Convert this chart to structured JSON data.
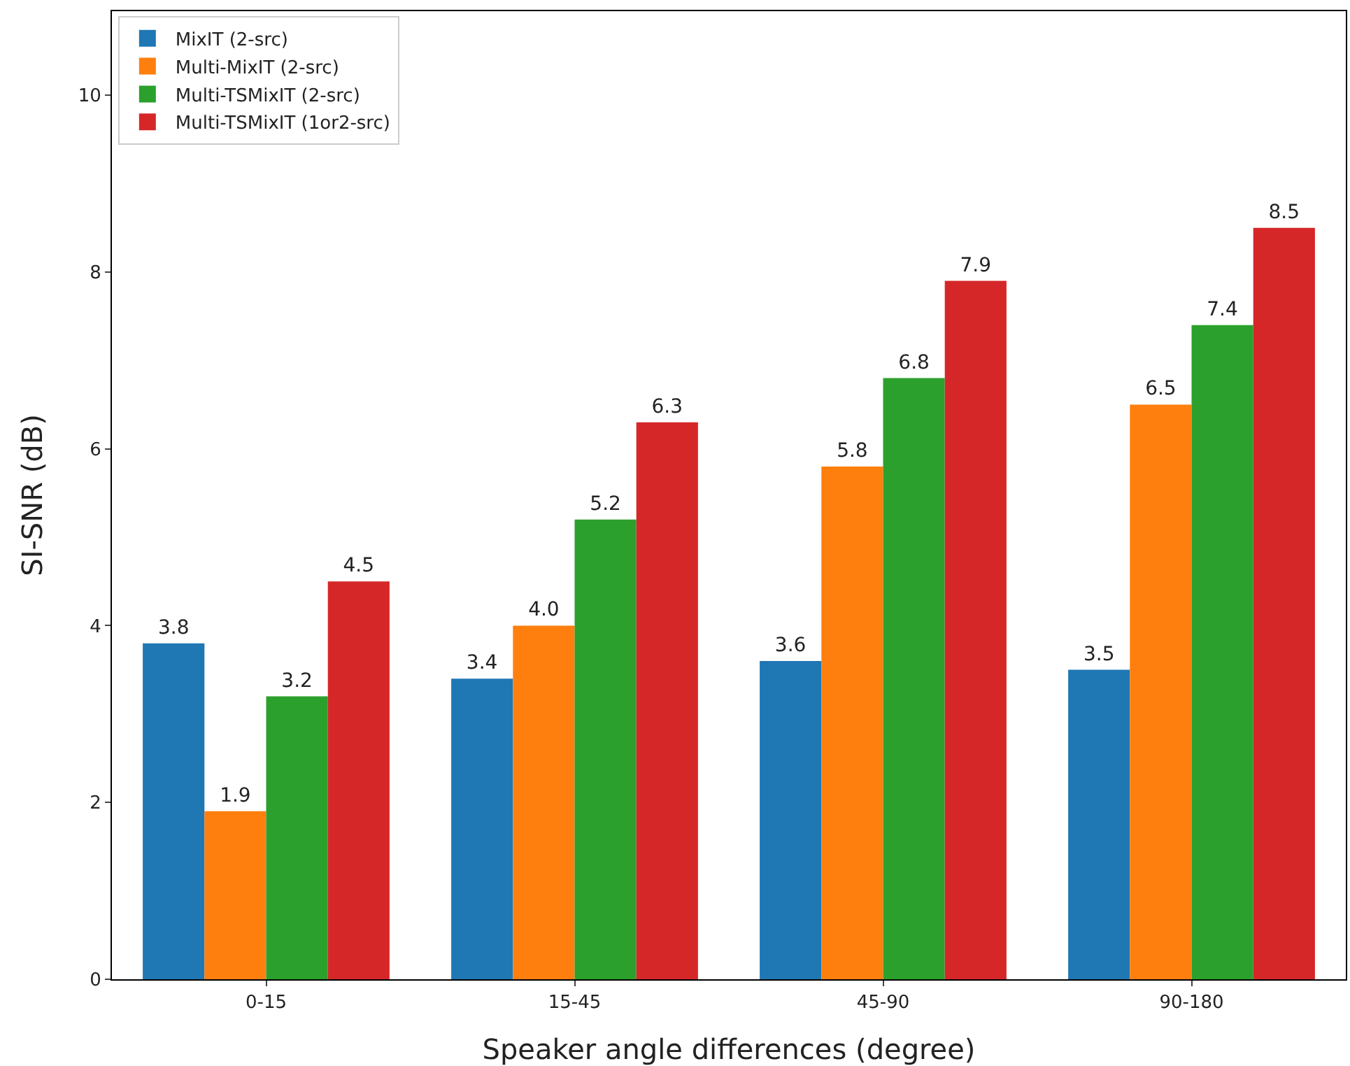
{
  "chart_data": {
    "type": "bar",
    "xlabel": "Speaker angle differences (degree)",
    "ylabel": "SI-SNR (dB)",
    "categories": [
      "0-15",
      "15-45",
      "45-90",
      "90-180"
    ],
    "series": [
      {
        "name": "MixIT (2-src)",
        "color": "#1f77b4",
        "values": [
          3.8,
          3.4,
          3.6,
          3.5
        ],
        "value_labels": [
          "3.8",
          "3.4",
          "3.6",
          "3.5"
        ]
      },
      {
        "name": "Multi-MixIT (2-src)",
        "color": "#ff7f0e",
        "values": [
          1.9,
          4.0,
          5.8,
          6.5
        ],
        "value_labels": [
          "1.9",
          "4.0",
          "5.8",
          "6.5"
        ]
      },
      {
        "name": "Multi-TSMixIT (2-src)",
        "color": "#2ca02c",
        "values": [
          3.2,
          5.2,
          6.8,
          7.4
        ],
        "value_labels": [
          "3.2",
          "5.2",
          "6.8",
          "7.4"
        ]
      },
      {
        "name": "Multi-TSMixIT (1or2-src)",
        "color": "#d62728",
        "values": [
          4.5,
          6.3,
          7.9,
          8.5
        ],
        "value_labels": [
          "4.5",
          "6.3",
          "7.9",
          "8.5"
        ]
      }
    ],
    "ylim": [
      0,
      10.95
    ],
    "yticks": [
      0,
      2,
      4,
      6,
      8,
      10
    ],
    "grid": false,
    "legend": "top left"
  }
}
